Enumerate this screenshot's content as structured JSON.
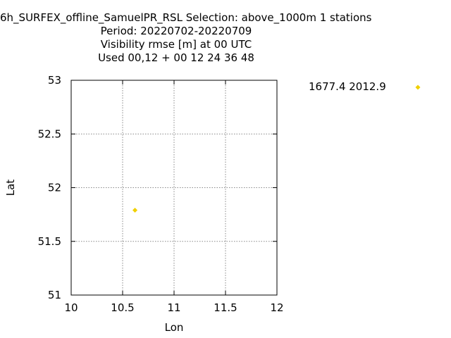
{
  "chart_data": {
    "type": "scatter",
    "title_lines": [
      "6h_SURFEX_offline_SamuelPR_RSL   Selection: above_1000m      1 stations",
      "Period: 20220702-20220709",
      "Visibility rmse [m] at  00 UTC",
      "Used  00,12  + 00 12 24 36 48"
    ],
    "xlabel": "Lon",
    "ylabel": "Lat",
    "xlim": [
      10,
      12
    ],
    "ylim": [
      51,
      53
    ],
    "xticks": [
      "10",
      "10.5",
      "11",
      "11.5",
      "12"
    ],
    "yticks": [
      "51",
      "51.5",
      "52",
      "52.5",
      "53"
    ],
    "grid": true,
    "legend_position": "top-right, outside plot",
    "series": [
      {
        "name": "1677.4 2012.9",
        "color": "#f0d000",
        "marker": "diamond",
        "points": [
          {
            "x": 10.62,
            "y": 51.79
          }
        ]
      }
    ]
  }
}
